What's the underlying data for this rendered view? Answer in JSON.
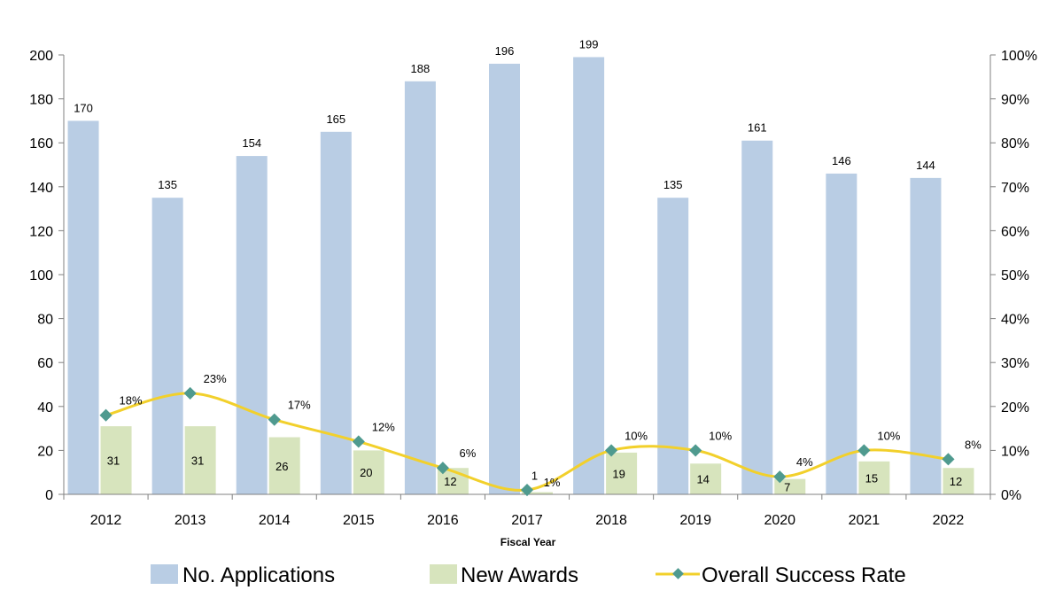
{
  "chart_data": {
    "type": "bar",
    "xlabel": "Fiscal Year",
    "categories": [
      "2012",
      "2013",
      "2014",
      "2015",
      "2016",
      "2017",
      "2018",
      "2019",
      "2020",
      "2021",
      "2022"
    ],
    "series": [
      {
        "name": "No. Applications",
        "type": "bar",
        "axis": "left",
        "color": "#b9cde4",
        "values": [
          170,
          135,
          154,
          165,
          188,
          196,
          199,
          135,
          161,
          146,
          144
        ],
        "labels": [
          "170",
          "135",
          "154",
          "165",
          "188",
          "196",
          "199",
          "135",
          "161",
          "146",
          "144"
        ]
      },
      {
        "name": "New Awards",
        "type": "bar",
        "axis": "left",
        "color": "#d7e4bd",
        "values": [
          31,
          31,
          26,
          20,
          12,
          1,
          19,
          14,
          7,
          15,
          12
        ],
        "labels": [
          "31",
          "31",
          "26",
          "20",
          "12",
          "1",
          "19",
          "14",
          "7",
          "15",
          "12"
        ]
      },
      {
        "name": "Overall Success Rate",
        "type": "line",
        "axis": "right",
        "color": "#f2d02b",
        "marker_color": "#4f9a8f",
        "values": [
          18,
          23,
          17,
          12,
          6,
          1,
          10,
          10,
          4,
          10,
          8
        ],
        "labels": [
          "18%",
          "23%",
          "17%",
          "12%",
          "6%",
          "1%",
          "10%",
          "10%",
          "4%",
          "10%",
          "8%"
        ]
      }
    ],
    "y_left": {
      "min": 0,
      "max": 200,
      "ticks": [
        "0",
        "20",
        "40",
        "60",
        "80",
        "100",
        "120",
        "140",
        "160",
        "180",
        "200"
      ]
    },
    "y_right": {
      "min": 0,
      "max": 100,
      "ticks": [
        "0%",
        "10%",
        "20%",
        "30%",
        "40%",
        "50%",
        "60%",
        "70%",
        "80%",
        "90%",
        "100%"
      ]
    },
    "grid": false,
    "legend": "bottom"
  }
}
